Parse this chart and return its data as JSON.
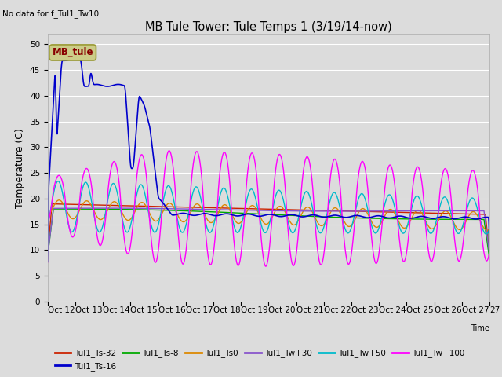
{
  "title": "MB Tule Tower: Tule Temps 1 (3/19/14-now)",
  "subtitle": "No data for f_Tul1_Tw10",
  "xlabel": "Time",
  "ylabel": "Temperature (C)",
  "ylim": [
    0,
    52
  ],
  "yticks": [
    0,
    5,
    10,
    15,
    20,
    25,
    30,
    35,
    40,
    45,
    50
  ],
  "bg_color": "#dcdcdc",
  "plot_bg": "#dcdcdc",
  "legend_label": "MB_tule",
  "legend_box_color": "#cccc88",
  "legend_text_color": "#880000",
  "series_colors": {
    "Tul1_Ts-32": "#cc2200",
    "Tul1_Ts-16": "#0000cc",
    "Tul1_Ts-8": "#00aa00",
    "Tul1_Ts0": "#dd8800",
    "Tul1_Tw+30": "#8855cc",
    "Tul1_Tw+50": "#00bbcc",
    "Tul1_Tw+100": "#ff00ff"
  },
  "xtick_labels": [
    "Oct 12",
    "Oct 13",
    "Oct 14",
    "Oct 15",
    "Oct 16",
    "Oct 17",
    "Oct 18",
    "Oct 19",
    "Oct 20",
    "Oct 21",
    "Oct 22",
    "Oct 23",
    "Oct 24",
    "Oct 25",
    "Oct 26",
    "Oct 27"
  ],
  "num_days": 16
}
